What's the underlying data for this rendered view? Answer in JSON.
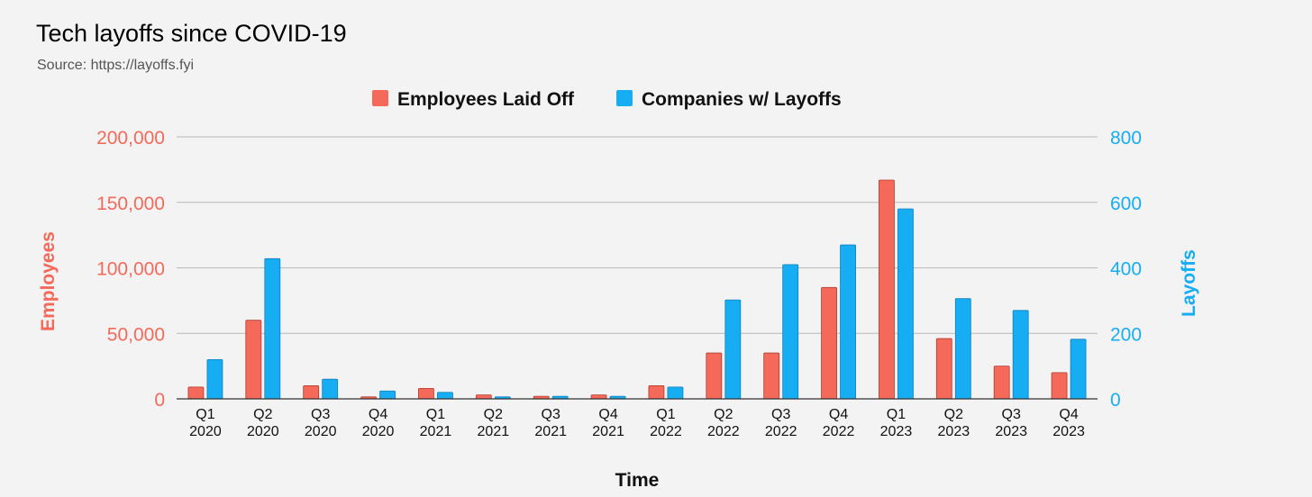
{
  "chart_data": {
    "type": "bar",
    "title": "Tech layoffs since COVID-19",
    "subtitle": "Source: https://layoffs.fyi",
    "xlabel": "Time",
    "ylabel_left": "Employees",
    "ylabel_right": "Layoffs",
    "categories": [
      [
        "Q1",
        "2020"
      ],
      [
        "Q2",
        "2020"
      ],
      [
        "Q3",
        "2020"
      ],
      [
        "Q4",
        "2020"
      ],
      [
        "Q1",
        "2021"
      ],
      [
        "Q2",
        "2021"
      ],
      [
        "Q3",
        "2021"
      ],
      [
        "Q4",
        "2021"
      ],
      [
        "Q1",
        "2022"
      ],
      [
        "Q2",
        "2022"
      ],
      [
        "Q3",
        "2022"
      ],
      [
        "Q4",
        "2022"
      ],
      [
        "Q1",
        "2023"
      ],
      [
        "Q2",
        "2023"
      ],
      [
        "Q3",
        "2023"
      ],
      [
        "Q4",
        "2023"
      ]
    ],
    "series": [
      {
        "name": "Employees Laid Off",
        "axis": "left",
        "color": "#f4695a",
        "values": [
          9000,
          60000,
          10000,
          1500,
          8000,
          3000,
          2000,
          3000,
          10000,
          35000,
          35000,
          85000,
          167000,
          46000,
          25000,
          20000
        ]
      },
      {
        "name": "Companies w/ Layoffs",
        "axis": "right",
        "color": "#17adf3",
        "values": [
          120,
          428,
          60,
          24,
          20,
          6,
          8,
          8,
          36,
          302,
          410,
          470,
          580,
          306,
          270,
          182
        ]
      }
    ],
    "left_axis": {
      "ylim": [
        0,
        200000
      ],
      "ticks": [
        0,
        50000,
        100000,
        150000,
        200000
      ],
      "tick_labels": [
        "0",
        "50,000",
        "100,000",
        "150,000",
        "200,000"
      ],
      "color": "#f4695a"
    },
    "right_axis": {
      "ylim": [
        0,
        800
      ],
      "ticks": [
        0,
        200,
        400,
        600,
        800
      ],
      "tick_labels": [
        "0",
        "200",
        "400",
        "600",
        "800"
      ],
      "color": "#17adf3"
    },
    "grid": true,
    "legend_position": "top-center"
  }
}
